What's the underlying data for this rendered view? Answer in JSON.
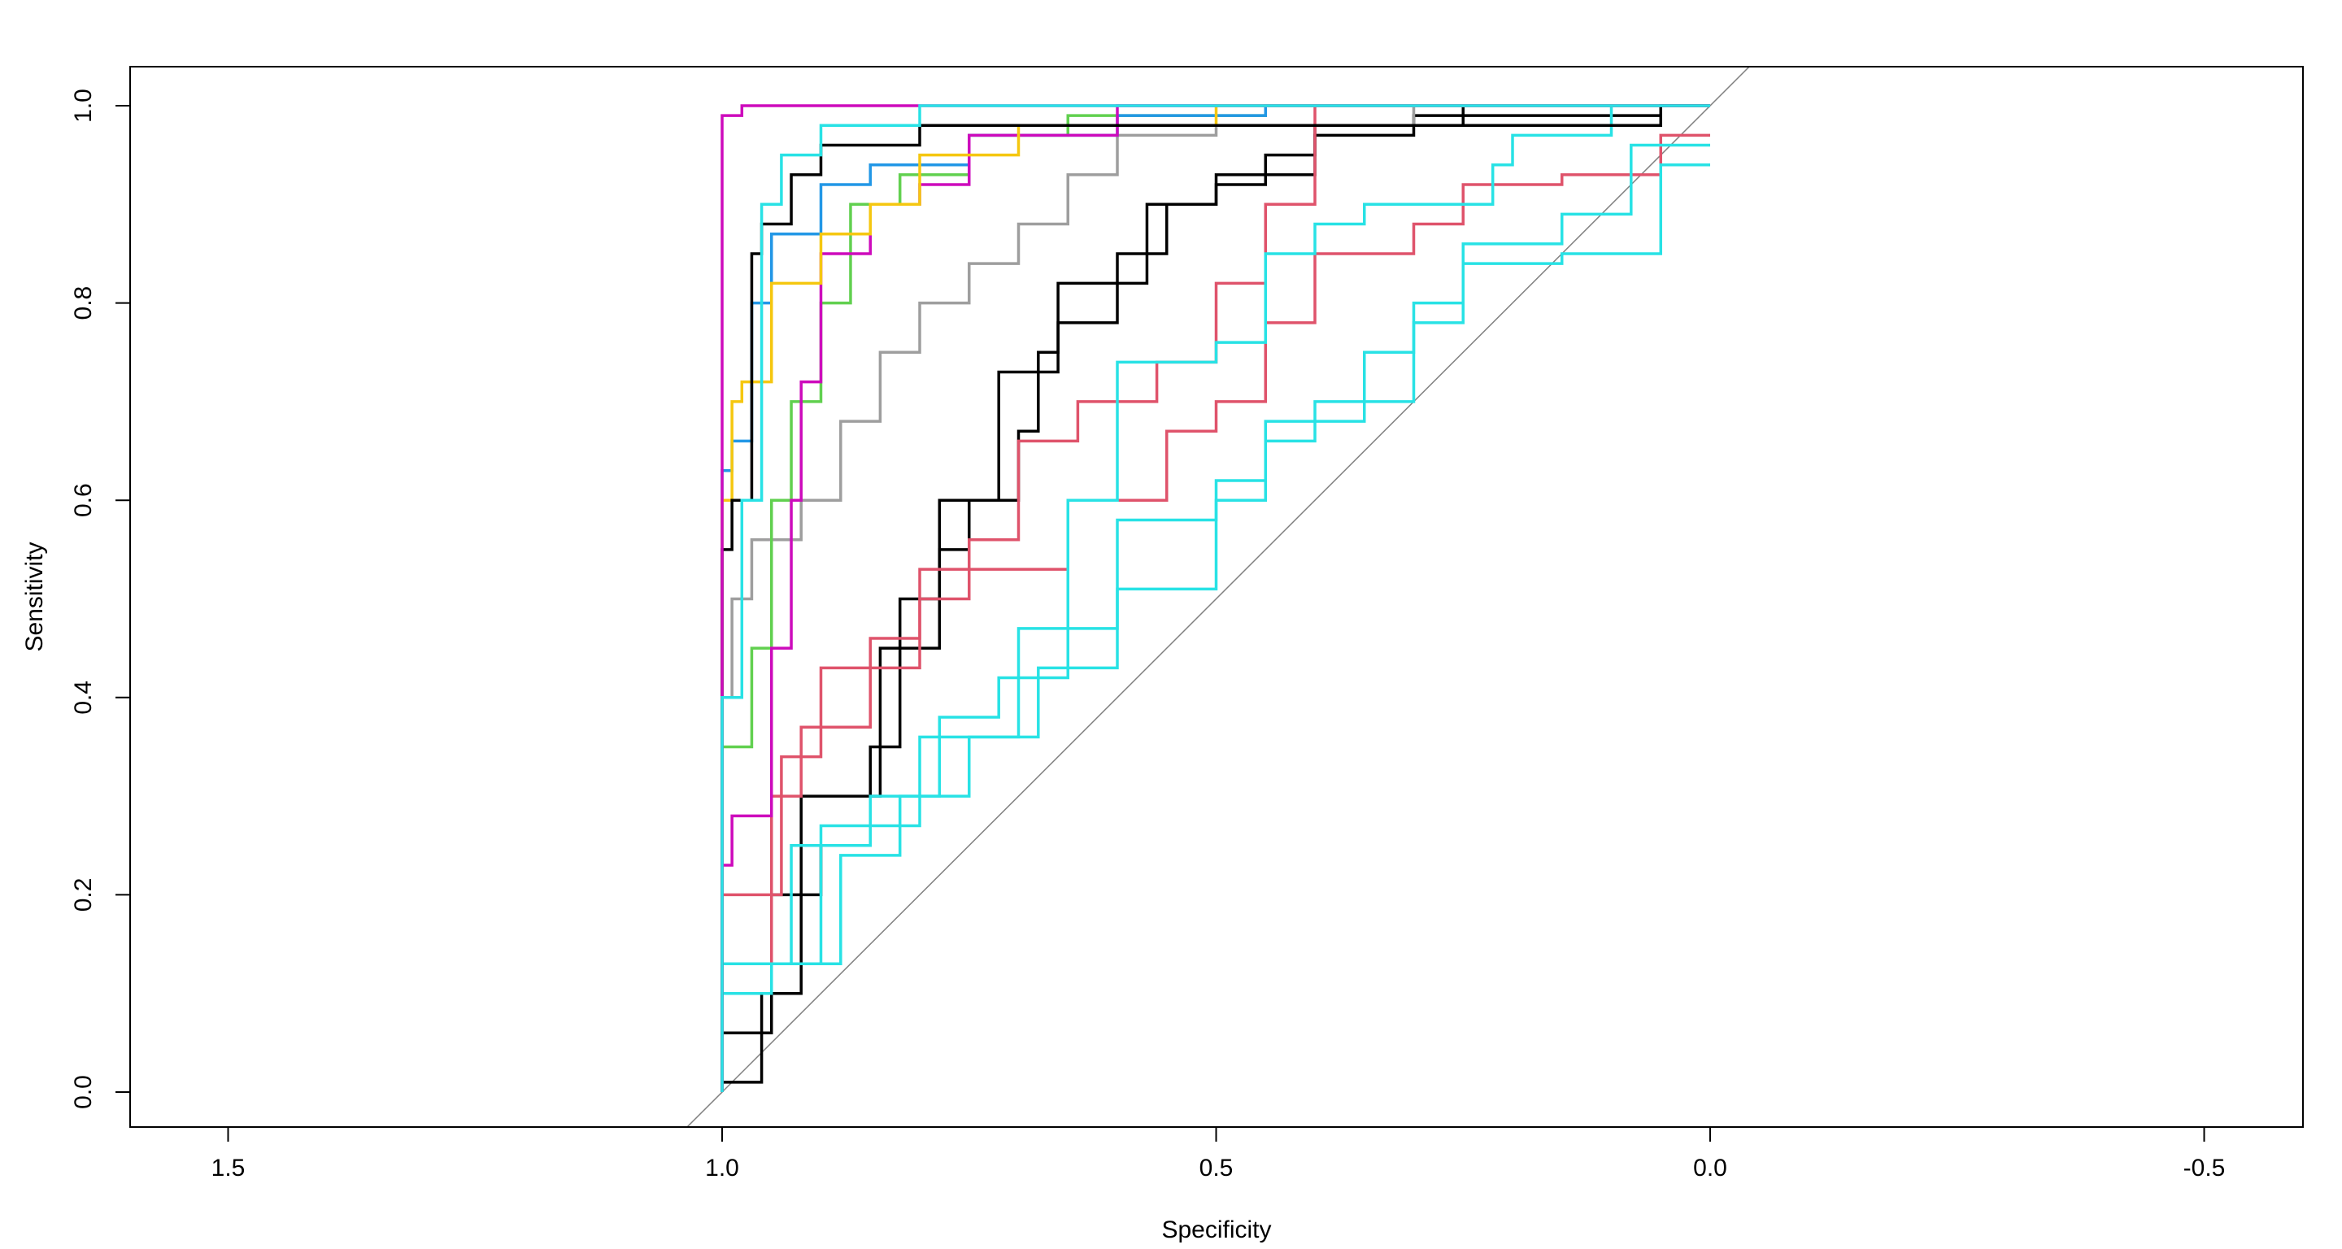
{
  "chart_data": {
    "type": "line",
    "title": "",
    "xlabel": "Specificity",
    "ylabel": "Sensitivity",
    "xlim": [
      1.6,
      -0.6
    ],
    "ylim": [
      -0.04,
      1.04
    ],
    "x_reversed": true,
    "xticks": [
      1.5,
      1.0,
      0.5,
      0.0,
      -0.5
    ],
    "xtick_labels": [
      "1.5",
      "1.0",
      "0.5",
      "0.0",
      "-0.5"
    ],
    "yticks": [
      0.0,
      0.2,
      0.4,
      0.6,
      0.8,
      1.0
    ],
    "ytick_labels": [
      "0.0",
      "0.2",
      "0.4",
      "0.6",
      "0.8",
      "1.0"
    ],
    "grid": false,
    "legend": "none",
    "reference_line": {
      "from": [
        1,
        0
      ],
      "to": [
        0,
        1
      ],
      "color": "#808080"
    },
    "series": [
      {
        "color": "#000000",
        "x": [
          1,
          0.96,
          0.96,
          0.92,
          0.9,
          0.85,
          0.82,
          0.78,
          0.75,
          0.7,
          0.68,
          0.66,
          0.6,
          0.55,
          0.5,
          0.4,
          0.3,
          0.05,
          0
        ],
        "y": [
          0,
          0.01,
          0.1,
          0.1,
          0.2,
          0.25,
          0.35,
          0.5,
          0.55,
          0.6,
          0.67,
          0.75,
          0.78,
          0.85,
          0.9,
          0.93,
          0.97,
          0.99,
          1
        ]
      },
      {
        "color": "#000000",
        "x": [
          1,
          0.95,
          0.92,
          0.84,
          0.78,
          0.72,
          0.66,
          0.57,
          0.5,
          0.45,
          0.4,
          0.25,
          0.05,
          0
        ],
        "y": [
          0,
          0.06,
          0.2,
          0.3,
          0.45,
          0.6,
          0.73,
          0.82,
          0.9,
          0.92,
          0.95,
          0.98,
          1,
          1
        ]
      },
      {
        "color": "#DF536B",
        "x": [
          1,
          0.95,
          0.92,
          0.85,
          0.8,
          0.75,
          0.7,
          0.64,
          0.56,
          0.5,
          0.45,
          0.4,
          0.4,
          0
        ],
        "y": [
          0,
          0.1,
          0.3,
          0.37,
          0.46,
          0.53,
          0.56,
          0.66,
          0.7,
          0.74,
          0.82,
          0.9,
          1,
          1
        ]
      },
      {
        "color": "#DF536B",
        "x": [
          1,
          0.94,
          0.9,
          0.8,
          0.75,
          0.65,
          0.55,
          0.5,
          0.45,
          0.4,
          0.3,
          0.25,
          0.15,
          0.05,
          0
        ],
        "y": [
          0,
          0.2,
          0.34,
          0.43,
          0.5,
          0.53,
          0.6,
          0.67,
          0.7,
          0.78,
          0.85,
          0.88,
          0.92,
          0.93,
          0.97
        ]
      },
      {
        "color": "#28E2E5",
        "x": [
          1,
          0.93,
          0.85,
          0.78,
          0.72,
          0.65,
          0.6,
          0.5,
          0.45,
          0.4,
          0.35,
          0.22,
          0.2,
          0.1,
          0
        ],
        "y": [
          0,
          0.13,
          0.25,
          0.3,
          0.38,
          0.42,
          0.6,
          0.74,
          0.76,
          0.85,
          0.88,
          0.9,
          0.94,
          0.97,
          1
        ]
      },
      {
        "color": "#28E2E5",
        "x": [
          1,
          0.95,
          0.88,
          0.82,
          0.75,
          0.68,
          0.6,
          0.5,
          0.45,
          0.35,
          0.3,
          0.25,
          0.15,
          0.08,
          0
        ],
        "y": [
          0,
          0.1,
          0.13,
          0.24,
          0.3,
          0.36,
          0.43,
          0.58,
          0.62,
          0.68,
          0.75,
          0.8,
          0.86,
          0.89,
          0.96
        ]
      },
      {
        "color": "#28E2E5",
        "x": [
          1,
          0.9,
          0.8,
          0.7,
          0.6,
          0.5,
          0.45,
          0.4,
          0.3,
          0.25,
          0.15,
          0.05,
          0
        ],
        "y": [
          0,
          0.13,
          0.27,
          0.36,
          0.47,
          0.51,
          0.6,
          0.66,
          0.7,
          0.78,
          0.84,
          0.85,
          0.94
        ]
      },
      {
        "color": "#9E9E9E",
        "x": [
          1,
          0.99,
          0.97,
          0.92,
          0.88,
          0.84,
          0.8,
          0.75,
          0.7,
          0.65,
          0.6,
          0.5,
          0.3,
          0
        ],
        "y": [
          0,
          0.4,
          0.5,
          0.56,
          0.6,
          0.68,
          0.75,
          0.8,
          0.84,
          0.88,
          0.93,
          0.97,
          0.98,
          1
        ]
      },
      {
        "color": "#61D04F",
        "x": [
          1,
          0.97,
          0.95,
          0.93,
          0.9,
          0.87,
          0.82,
          0.75,
          0.65,
          0.45,
          0
        ],
        "y": [
          0,
          0.35,
          0.45,
          0.6,
          0.7,
          0.8,
          0.9,
          0.93,
          0.97,
          0.99,
          1
        ]
      },
      {
        "color": "#2297E6",
        "x": [
          1,
          0.99,
          0.97,
          0.95,
          0.9,
          0.85,
          0.75,
          0.6,
          0.45,
          0
        ],
        "y": [
          0,
          0.63,
          0.66,
          0.8,
          0.87,
          0.92,
          0.94,
          0.97,
          0.99,
          1
        ]
      },
      {
        "color": "#CD0BBC",
        "x": [
          1,
          0.99,
          0.95,
          0.93,
          0.92,
          0.9,
          0.85,
          0.8,
          0.75,
          0.6,
          0.4,
          0
        ],
        "y": [
          0,
          0.23,
          0.28,
          0.45,
          0.6,
          0.72,
          0.85,
          0.9,
          0.92,
          0.97,
          1,
          1
        ]
      },
      {
        "color": "#F5C710",
        "x": [
          1,
          0.99,
          0.98,
          0.95,
          0.9,
          0.85,
          0.8,
          0.7,
          0.5,
          0.3,
          0
        ],
        "y": [
          0,
          0.6,
          0.7,
          0.72,
          0.82,
          0.87,
          0.9,
          0.95,
          0.98,
          1,
          1
        ]
      },
      {
        "color": "#000000",
        "x": [
          1,
          0.99,
          0.97,
          0.96,
          0.93,
          0.9,
          0.8,
          0.6,
          0.05,
          0.05,
          0
        ],
        "y": [
          0,
          0.55,
          0.6,
          0.85,
          0.88,
          0.93,
          0.96,
          0.98,
          0.98,
          1,
          1
        ]
      },
      {
        "color": "#CD0BBC",
        "x": [
          1,
          1,
          0.98,
          0.9,
          0
        ],
        "y": [
          0,
          0.95,
          0.99,
          1,
          1
        ]
      },
      {
        "color": "#28E2E5",
        "x": [
          1,
          0.98,
          0.96,
          0.94,
          0.9,
          0.8,
          0.2,
          0
        ],
        "y": [
          0,
          0.4,
          0.6,
          0.9,
          0.95,
          0.98,
          1,
          1
        ]
      }
    ]
  }
}
